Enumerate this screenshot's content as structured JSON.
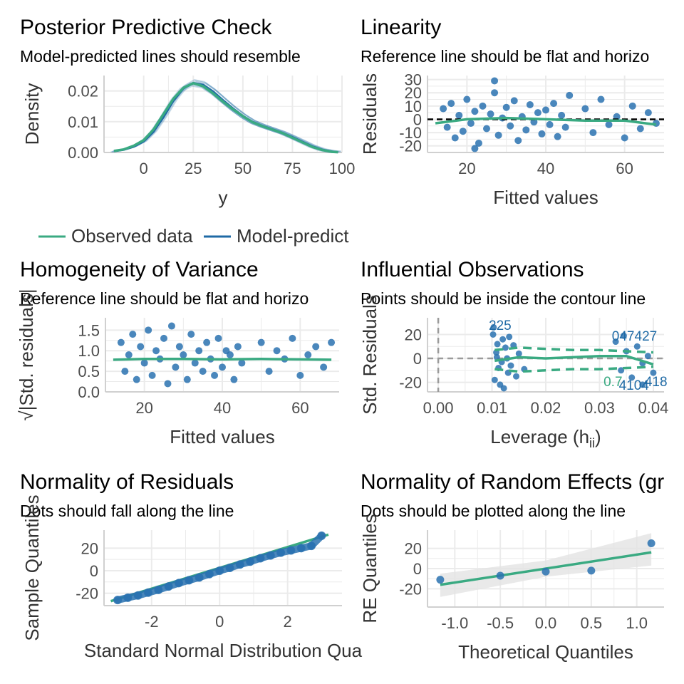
{
  "colors": {
    "observed": "#3aaa82",
    "model": "#1f6aa5",
    "point": "#2a72b0",
    "grid": "#ebebeb",
    "band": "#e3e3e3",
    "refline": "#000000"
  },
  "chart_data": [
    {
      "id": "ppc",
      "type": "line",
      "title": "Posterior Predictive Check",
      "subtitle": "Model-predicted lines should resemble",
      "xlabel": "y",
      "ylabel": "Density",
      "xlim": [
        -20,
        100
      ],
      "ylim": [
        0,
        0.025
      ],
      "xticks": [
        0,
        25,
        50,
        75,
        100
      ],
      "yticks": [
        0.0,
        0.01,
        0.02
      ],
      "xtick_labels": [
        "0",
        "25",
        "50",
        "75",
        "100"
      ],
      "ytick_labels": [
        "0.00",
        "0.01",
        "0.02"
      ],
      "legend": [
        "Observed data",
        "Model-predict"
      ],
      "legend_position": "bottom",
      "series": [
        {
          "name": "Observed data",
          "x": [
            -15,
            -10,
            -5,
            0,
            5,
            10,
            15,
            20,
            25,
            30,
            35,
            40,
            45,
            50,
            55,
            60,
            65,
            70,
            75,
            80,
            85,
            90,
            95,
            98
          ],
          "y": [
            0.0005,
            0.001,
            0.0022,
            0.004,
            0.0075,
            0.0125,
            0.0175,
            0.021,
            0.0225,
            0.0215,
            0.0192,
            0.0165,
            0.014,
            0.0118,
            0.0098,
            0.0085,
            0.0074,
            0.0063,
            0.0048,
            0.0033,
            0.0018,
            0.0008,
            0.0002,
            0.0001
          ]
        },
        {
          "name": "Model-predict",
          "x": [
            -15,
            -10,
            -5,
            0,
            5,
            10,
            15,
            20,
            25,
            30,
            35,
            40,
            45,
            50,
            55,
            60,
            65,
            70,
            75,
            80,
            85,
            90,
            95,
            98
          ],
          "y": [
            0.0004,
            0.0009,
            0.0019,
            0.0036,
            0.0068,
            0.0115,
            0.0168,
            0.0208,
            0.0226,
            0.022,
            0.0198,
            0.017,
            0.0143,
            0.0119,
            0.0099,
            0.0086,
            0.0075,
            0.0064,
            0.005,
            0.0035,
            0.002,
            0.0009,
            0.0003,
            0.0001
          ]
        }
      ]
    },
    {
      "id": "lin",
      "type": "scatter",
      "title": "Linearity",
      "subtitle": "Reference line should be flat and horizo",
      "xlabel": "Fitted values",
      "ylabel": "Residuals",
      "xlim": [
        10,
        70
      ],
      "ylim": [
        -25,
        33
      ],
      "xticks": [
        20,
        40,
        60
      ],
      "yticks": [
        -20,
        -10,
        0,
        10,
        20,
        30
      ],
      "xtick_labels": [
        "20",
        "40",
        "60"
      ],
      "ytick_labels": [
        "-20",
        "-10",
        "0",
        "10",
        "20",
        "30"
      ],
      "reference_line": 0,
      "smooth": {
        "x": [
          12,
          20,
          30,
          40,
          50,
          60,
          68
        ],
        "y": [
          -3,
          0,
          1,
          0,
          -1,
          -1,
          -4
        ]
      },
      "points": [
        [
          14,
          8
        ],
        [
          15,
          -6
        ],
        [
          16,
          12
        ],
        [
          17,
          -14
        ],
        [
          18,
          3
        ],
        [
          19,
          -9
        ],
        [
          20,
          15
        ],
        [
          21,
          -3
        ],
        [
          22,
          6
        ],
        [
          23,
          -18
        ],
        [
          24,
          10
        ],
        [
          25,
          -7
        ],
        [
          26,
          4
        ],
        [
          27,
          20
        ],
        [
          28,
          -12
        ],
        [
          29,
          1
        ],
        [
          30,
          9
        ],
        [
          31,
          -5
        ],
        [
          32,
          14
        ],
        [
          33,
          -16
        ],
        [
          34,
          2
        ],
        [
          35,
          -8
        ],
        [
          36,
          11
        ],
        [
          37,
          -2
        ],
        [
          38,
          5
        ],
        [
          39,
          -11
        ],
        [
          40,
          7
        ],
        [
          41,
          -4
        ],
        [
          42,
          12
        ],
        [
          43,
          -13
        ],
        [
          44,
          3
        ],
        [
          45,
          -6
        ],
        [
          50,
          8
        ],
        [
          52,
          -10
        ],
        [
          54,
          15
        ],
        [
          56,
          -4
        ],
        [
          58,
          2
        ],
        [
          60,
          -14
        ],
        [
          62,
          10
        ],
        [
          64,
          -7
        ],
        [
          66,
          5
        ],
        [
          68,
          -3
        ],
        [
          27,
          29
        ],
        [
          22,
          -22
        ],
        [
          46,
          18
        ]
      ]
    },
    {
      "id": "hov",
      "type": "scatter",
      "title": "Homogeneity of Variance",
      "subtitle": "Reference line should be flat and horizo",
      "xlabel": "Fitted values",
      "ylabel": "√|Std. residuals|",
      "xlim": [
        10,
        70
      ],
      "ylim": [
        0,
        1.8
      ],
      "xticks": [
        20,
        40,
        60
      ],
      "yticks": [
        0.0,
        0.5,
        1.0,
        1.5
      ],
      "xtick_labels": [
        "20",
        "40",
        "60"
      ],
      "ytick_labels": [
        "0.0",
        "0.5",
        "1.0",
        "1.5"
      ],
      "smooth": {
        "x": [
          12,
          20,
          30,
          40,
          50,
          60,
          68
        ],
        "y": [
          0.78,
          0.8,
          0.8,
          0.79,
          0.8,
          0.79,
          0.78
        ]
      },
      "points": [
        [
          14,
          1.2
        ],
        [
          15,
          0.5
        ],
        [
          16,
          0.9
        ],
        [
          17,
          1.4
        ],
        [
          18,
          0.3
        ],
        [
          19,
          1.1
        ],
        [
          20,
          0.7
        ],
        [
          21,
          1.5
        ],
        [
          22,
          0.4
        ],
        [
          23,
          1.0
        ],
        [
          24,
          0.8
        ],
        [
          25,
          1.3
        ],
        [
          26,
          0.2
        ],
        [
          27,
          1.6
        ],
        [
          28,
          0.6
        ],
        [
          29,
          1.1
        ],
        [
          30,
          0.9
        ],
        [
          31,
          0.3
        ],
        [
          32,
          1.4
        ],
        [
          33,
          0.7
        ],
        [
          34,
          1.0
        ],
        [
          35,
          0.5
        ],
        [
          36,
          1.2
        ],
        [
          37,
          0.8
        ],
        [
          38,
          0.4
        ],
        [
          39,
          1.3
        ],
        [
          40,
          0.6
        ],
        [
          41,
          1.0
        ],
        [
          42,
          0.9
        ],
        [
          43,
          0.3
        ],
        [
          44,
          1.1
        ],
        [
          45,
          0.7
        ],
        [
          50,
          1.2
        ],
        [
          52,
          0.5
        ],
        [
          54,
          1.0
        ],
        [
          56,
          0.8
        ],
        [
          58,
          1.3
        ],
        [
          60,
          0.4
        ],
        [
          62,
          0.9
        ],
        [
          64,
          1.1
        ],
        [
          66,
          0.6
        ],
        [
          68,
          1.2
        ]
      ]
    },
    {
      "id": "infl",
      "type": "scatter",
      "title": "Influential Observations",
      "subtitle": "Points should be inside the contour line",
      "xlabel": "Leverage (h",
      "xlabel_sub": "ii",
      "xlabel_tail": ")",
      "ylabel": "Std. Residuals",
      "xlim": [
        -0.002,
        0.042
      ],
      "ylim": [
        -28,
        34
      ],
      "xticks": [
        0.0,
        0.01,
        0.02,
        0.03,
        0.04
      ],
      "yticks": [
        -20,
        0,
        20
      ],
      "xtick_labels": [
        "0.00",
        "0.01",
        "0.02",
        "0.03",
        "0.04"
      ],
      "ytick_labels": [
        "-20",
        "0",
        "20"
      ],
      "smooth": {
        "x": [
          0.0105,
          0.015,
          0.02,
          0.025,
          0.03,
          0.035,
          0.04
        ],
        "y": [
          -2,
          1,
          0,
          1,
          2,
          2,
          -5
        ]
      },
      "contour": {
        "x": [
          0.0105,
          0.015,
          0.02,
          0.025,
          0.03,
          0.035,
          0.04
        ],
        "upper": [
          7,
          9,
          8,
          7,
          7,
          6,
          5
        ],
        "lower": [
          -9,
          -11,
          -10,
          -9,
          -9,
          -8,
          -7
        ]
      },
      "labels": [
        {
          "text": "225",
          "x": 0.0115,
          "y": 28
        },
        {
          "text": "047427",
          "x": 0.0365,
          "y": 19
        },
        {
          "text": "0.7",
          "x": 0.0325,
          "y": -19
        },
        {
          "text": "4104",
          "x": 0.0364,
          "y": -22
        },
        {
          "text": "418",
          "x": 0.0405,
          "y": -19
        }
      ],
      "points": [
        [
          0.0102,
          20
        ],
        [
          0.0105,
          -18
        ],
        [
          0.011,
          12
        ],
        [
          0.0112,
          -8
        ],
        [
          0.0108,
          5
        ],
        [
          0.0115,
          -22
        ],
        [
          0.012,
          16
        ],
        [
          0.0118,
          -3
        ],
        [
          0.0125,
          9
        ],
        [
          0.013,
          -12
        ],
        [
          0.0103,
          26
        ],
        [
          0.0128,
          0
        ],
        [
          0.0135,
          -6
        ],
        [
          0.014,
          11
        ],
        [
          0.0145,
          -15
        ],
        [
          0.015,
          4
        ],
        [
          0.016,
          -9
        ],
        [
          0.0122,
          -25
        ],
        [
          0.0109,
          1
        ],
        [
          0.0132,
          18
        ],
        [
          0.033,
          14
        ],
        [
          0.034,
          -10
        ],
        [
          0.035,
          6
        ],
        [
          0.036,
          -16
        ],
        [
          0.037,
          10
        ],
        [
          0.038,
          -4
        ],
        [
          0.039,
          2
        ],
        [
          0.04,
          -12
        ],
        [
          0.0345,
          19
        ],
        [
          0.038,
          -22
        ]
      ]
    },
    {
      "id": "qq",
      "type": "scatter",
      "title": "Normality of Residuals",
      "subtitle": "Dots should fall along the line",
      "xlabel": "Standard Normal Distribution Qua",
      "ylabel": "Sample Quantiles",
      "xlim": [
        -3.4,
        3.6
      ],
      "ylim": [
        -31,
        36
      ],
      "xticks": [
        -2,
        0,
        2
      ],
      "yticks": [
        -20,
        0,
        20
      ],
      "xtick_labels": [
        "-2",
        "0",
        "2"
      ],
      "ytick_labels": [
        "-20",
        "0",
        "20"
      ],
      "line": {
        "x": [
          -3.2,
          3.2
        ],
        "y": [
          -27,
          32
        ]
      },
      "points": [
        [
          -3.0,
          -26
        ],
        [
          -2.7,
          -24
        ],
        [
          -2.4,
          -22
        ],
        [
          -2.1,
          -19.5
        ],
        [
          -1.8,
          -17
        ],
        [
          -1.5,
          -14
        ],
        [
          -1.2,
          -11
        ],
        [
          -0.9,
          -8.5
        ],
        [
          -0.6,
          -6
        ],
        [
          -0.3,
          -3
        ],
        [
          0,
          0
        ],
        [
          0.3,
          2.5
        ],
        [
          0.6,
          5.5
        ],
        [
          0.9,
          8
        ],
        [
          1.2,
          11
        ],
        [
          1.5,
          13.5
        ],
        [
          1.8,
          16
        ],
        [
          2.1,
          18
        ],
        [
          2.4,
          20
        ],
        [
          2.7,
          22
        ],
        [
          3.0,
          31
        ]
      ]
    },
    {
      "id": "re",
      "type": "scatter",
      "title": "Normality of Random Effects (gr",
      "subtitle": "Dots should be plotted along the line",
      "xlabel": "Theoretical Quantiles",
      "ylabel": "RE Quantiles",
      "xlim": [
        -1.3,
        1.3
      ],
      "ylim": [
        -38,
        38
      ],
      "xticks": [
        -1.0,
        -0.5,
        0.0,
        0.5,
        1.0
      ],
      "yticks": [
        -20,
        0,
        20
      ],
      "xtick_labels": [
        "-1.0",
        "-0.5",
        "0.0",
        "0.5",
        "1.0"
      ],
      "ytick_labels": [
        "-20",
        "0",
        "20"
      ],
      "line": {
        "x": [
          -1.16,
          1.16
        ],
        "y": [
          -16,
          16
        ]
      },
      "band": {
        "x": [
          -1.16,
          0,
          1.16
        ],
        "upper": [
          -5,
          8,
          35
        ],
        "lower": [
          -28,
          -8,
          3
        ]
      },
      "points": [
        [
          -1.16,
          -11
        ],
        [
          -0.5,
          -7
        ],
        [
          0.0,
          -3
        ],
        [
          0.5,
          -2
        ],
        [
          1.16,
          25
        ]
      ]
    }
  ]
}
